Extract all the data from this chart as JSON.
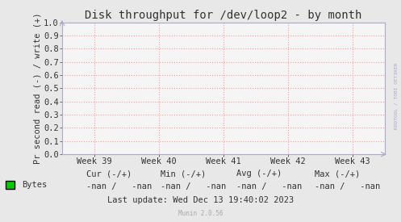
{
  "title": "Disk throughput for /dev/loop2 - by month",
  "ylabel": "Pr second read (-) / write (+)",
  "xlabel_ticks": [
    "Week 39",
    "Week 40",
    "Week 41",
    "Week 42",
    "Week 43"
  ],
  "ylim": [
    0.0,
    1.0
  ],
  "yticks": [
    0.0,
    0.1,
    0.2,
    0.3,
    0.4,
    0.5,
    0.6,
    0.7,
    0.8,
    0.9,
    1.0
  ],
  "bg_color": "#e8e8e8",
  "plot_bg_color": "#f5f5f5",
  "grid_color": "#ff9999",
  "title_color": "#333333",
  "axis_color": "#aaaacc",
  "tick_color": "#333333",
  "legend_label": "Bytes",
  "legend_color": "#00cc00",
  "cur_label": "Cur (-/+)",
  "min_label": "Min (-/+)",
  "avg_label": "Avg (-/+)",
  "max_label": "Max (-/+)",
  "nan_val": "-nan /   -nan",
  "last_update": "Last update: Wed Dec 13 19:40:02 2023",
  "munin_version": "Munin 2.0.56",
  "watermark": "RRDTOOL / TOBI OETIKER",
  "font_size": 7.5,
  "title_font_size": 10
}
